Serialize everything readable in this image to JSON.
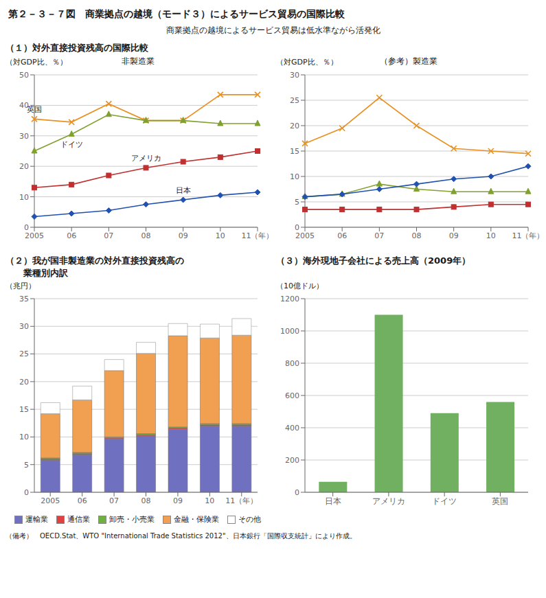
{
  "title": "第２－３－７図　商業拠点の越境（モード３）によるサービス貿易の国際比較",
  "subtitle": "商業拠点の越境によるサービス貿易は低水準ながら活発化",
  "annotations": [
    "（備考）　OECD.Stat、WTO \"International Trade Statistics 2012\"、日本銀行「国際収支統計」により作成。"
  ],
  "chart_data": [
    {
      "type": "line",
      "title": "（１）対外直接投資残高の国際比較",
      "subtitle": "非製造業",
      "ylabel": "（対GDP比、％）",
      "categories": [
        "2005",
        "06",
        "07",
        "08",
        "09",
        "10",
        "11（年）"
      ],
      "series": [
        {
          "name": "英国",
          "color": "#e89020",
          "marker": "x",
          "values": [
            35.5,
            34.5,
            40.5,
            35.0,
            35.0,
            43.5,
            43.5
          ]
        },
        {
          "name": "ドイツ",
          "color": "#80a030",
          "marker": "triangle",
          "values": [
            25.0,
            30.5,
            37.0,
            35.0,
            35.0,
            34.0,
            34.0
          ]
        },
        {
          "name": "アメリカ",
          "color": "#c03030",
          "marker": "square",
          "values": [
            13.0,
            14.0,
            17.0,
            19.5,
            21.5,
            23.0,
            25.0
          ]
        },
        {
          "name": "日本",
          "color": "#2050b0",
          "marker": "diamond",
          "values": [
            3.5,
            4.5,
            5.5,
            7.5,
            9.0,
            10.5,
            11.5
          ]
        }
      ],
      "ylim": [
        0,
        50
      ],
      "yticks": [
        0,
        10,
        20,
        30,
        40,
        50
      ],
      "grid": true
    },
    {
      "type": "line",
      "subtitle": "（参考）製造業",
      "ylabel": "（対GDP比、％）",
      "categories": [
        "2005",
        "06",
        "07",
        "08",
        "09",
        "10",
        "11（年）"
      ],
      "series": [
        {
          "color": "#e89020",
          "marker": "x",
          "values": [
            16.5,
            19.5,
            25.5,
            20.0,
            15.5,
            15.0,
            14.5
          ]
        },
        {
          "color": "#80a030",
          "marker": "triangle",
          "values": [
            6.0,
            6.5,
            8.5,
            7.5,
            7.0,
            7.0,
            7.0
          ]
        },
        {
          "color": "#c03030",
          "marker": "square",
          "values": [
            3.5,
            3.5,
            3.5,
            3.5,
            4.0,
            4.5,
            4.5
          ]
        },
        {
          "color": "#2050b0",
          "marker": "diamond",
          "values": [
            6.0,
            6.5,
            7.5,
            8.5,
            9.5,
            10.0,
            12.0
          ]
        }
      ],
      "ylim": [
        0,
        30
      ],
      "yticks": [
        0,
        5,
        10,
        15,
        20,
        25,
        30
      ],
      "grid": true
    },
    {
      "type": "bar",
      "stacked": true,
      "title": "（２）我が国非製造業の対外直接投資残高の\n　　業種別内訳",
      "ylabel": "（兆円）",
      "categories": [
        "2005",
        "06",
        "07",
        "08",
        "09",
        "10",
        "11（年）"
      ],
      "series": [
        {
          "name": "運輸業",
          "color": "#7070c0",
          "values": [
            5.8,
            6.8,
            9.6,
            10.2,
            11.4,
            12.0,
            12.0
          ]
        },
        {
          "name": "通信業",
          "color": "#e04040",
          "values": [
            0.2,
            0.2,
            0.2,
            0.2,
            0.2,
            0.2,
            0.2
          ]
        },
        {
          "name": "卸売・小売業",
          "color": "#70b040",
          "values": [
            0.2,
            0.2,
            0.2,
            0.2,
            0.2,
            0.2,
            0.2
          ]
        },
        {
          "name": "金融・保険業",
          "color": "#f0a050",
          "values": [
            8.0,
            9.5,
            12.0,
            14.5,
            16.5,
            15.5,
            16.0
          ]
        },
        {
          "name": "その他",
          "color": "#ffffff",
          "values": [
            2.0,
            2.5,
            2.0,
            2.0,
            2.2,
            2.5,
            3.0
          ]
        }
      ],
      "ylim": [
        0,
        35
      ],
      "yticks": [
        0,
        5,
        10,
        15,
        20,
        25,
        30,
        35
      ],
      "grid": true
    },
    {
      "type": "bar",
      "title": "（３）海外現地子会社による売上高（2009年）",
      "ylabel": "（10億ドル）",
      "categories": [
        "日本",
        "アメリカ",
        "ドイツ",
        "英国"
      ],
      "values": [
        65,
        1100,
        490,
        560
      ],
      "color": "#70b060",
      "ylim": [
        0,
        1200
      ],
      "yticks": [
        0,
        200,
        400,
        600,
        800,
        1000,
        1200
      ],
      "grid": true
    }
  ]
}
